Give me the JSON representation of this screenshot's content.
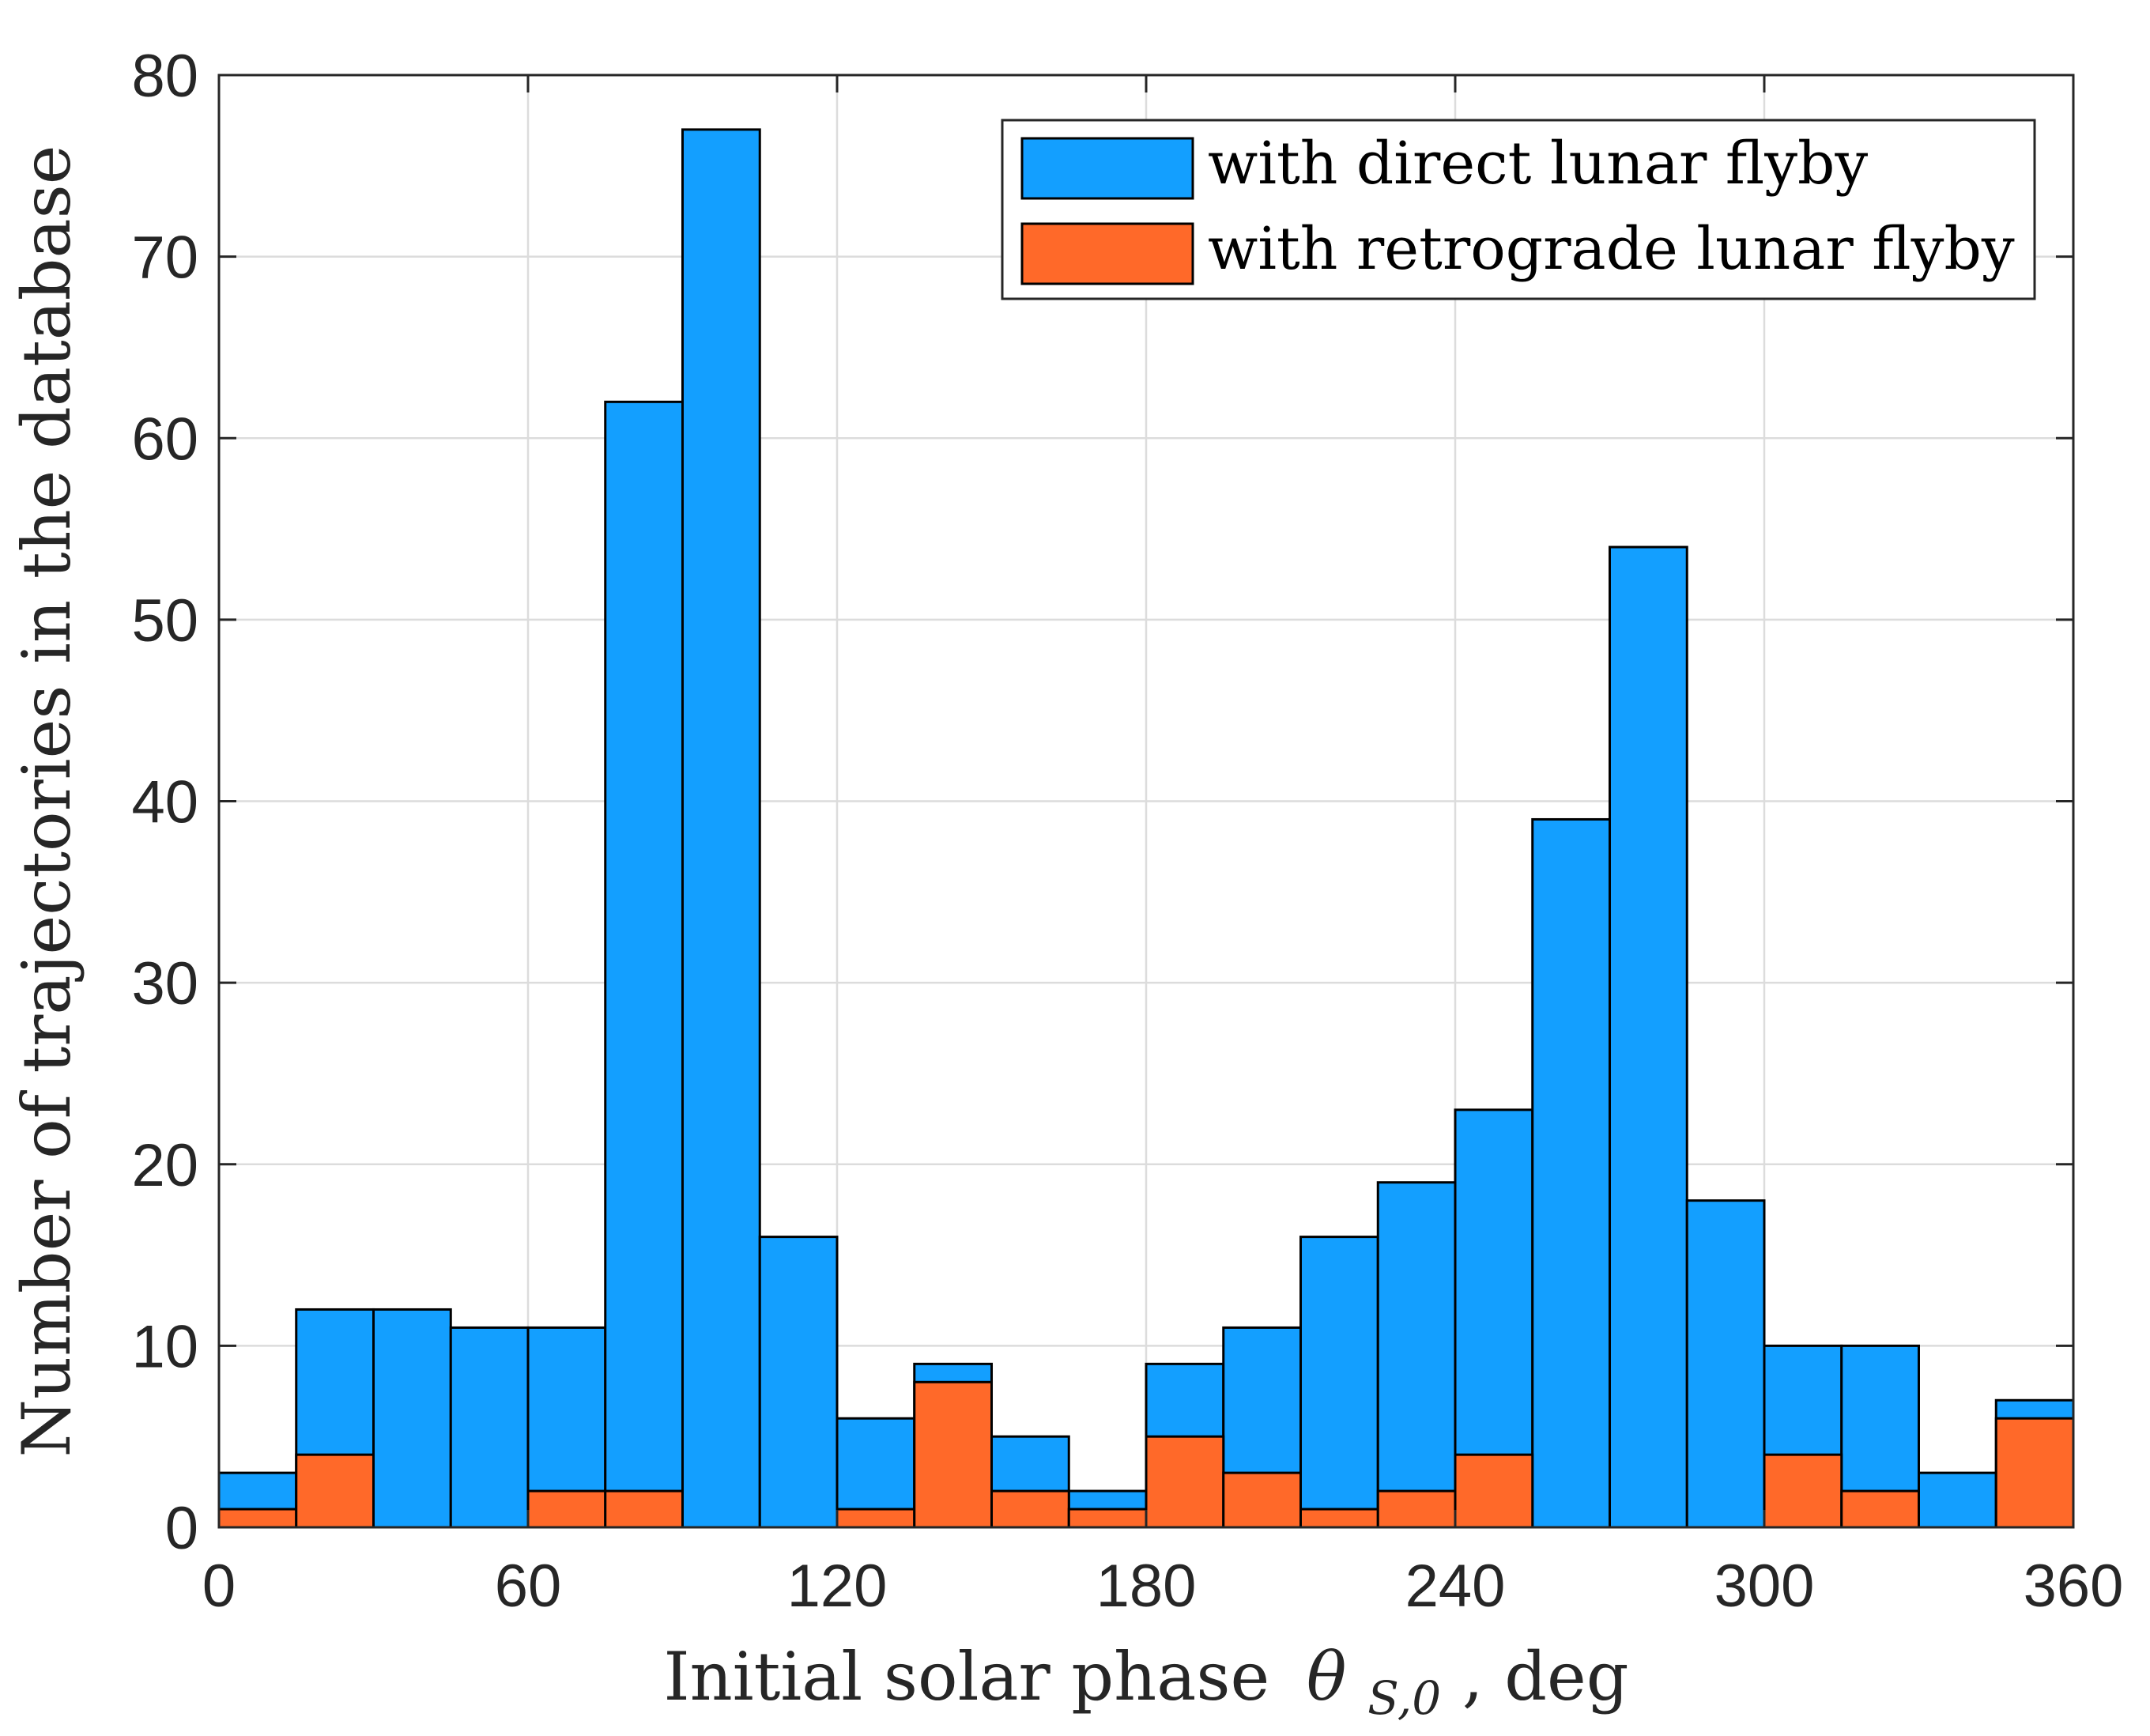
{
  "chart_data": {
    "type": "bar",
    "subtype": "stacked-overlapping-histogram",
    "title": "",
    "xlabel": "Initial solar phase",
    "xlabel_symbol": "θ",
    "xlabel_subscript": "S,0",
    "xlabel_suffix": ", deg",
    "ylabel": "Number of trajectories in the database",
    "xlim": [
      0,
      360
    ],
    "ylim": [
      0,
      80
    ],
    "xticks": [
      0,
      60,
      120,
      180,
      240,
      300,
      360
    ],
    "yticks": [
      0,
      10,
      20,
      30,
      40,
      50,
      60,
      70,
      80
    ],
    "grid": true,
    "legend_position": "top-right",
    "bin_width": 15,
    "bin_edges": [
      0,
      15,
      30,
      45,
      60,
      75,
      90,
      105,
      120,
      135,
      150,
      165,
      180,
      195,
      210,
      225,
      240,
      255,
      270,
      285,
      300,
      315,
      330,
      345,
      360
    ],
    "series": [
      {
        "name": "with direct lunar flyby",
        "color": "#139FFF",
        "values": [
          3,
          12,
          12,
          11,
          11,
          62,
          77,
          16,
          6,
          9,
          5,
          2,
          9,
          11,
          16,
          19,
          23,
          39,
          54,
          18,
          10,
          10,
          3,
          7
        ]
      },
      {
        "name": "with retrograde lunar flyby",
        "color": "#FF6929",
        "values": [
          1,
          4,
          0,
          0,
          2,
          2,
          0,
          0,
          1,
          8,
          2,
          1,
          5,
          3,
          1,
          2,
          4,
          0,
          0,
          0,
          4,
          2,
          0,
          6
        ]
      }
    ]
  }
}
